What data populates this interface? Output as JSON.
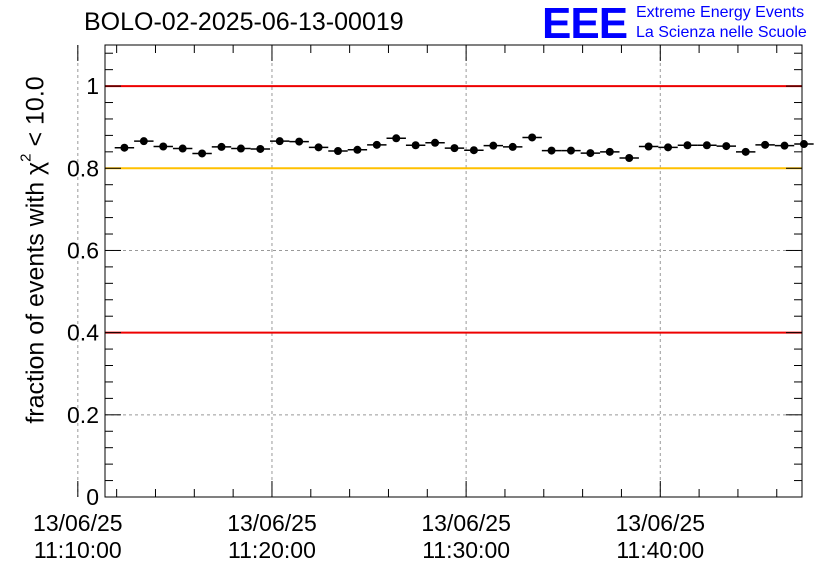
{
  "chart_data": {
    "type": "scatter",
    "title": "BOLO-02-2025-06-13-00019",
    "ylabel": "fraction of events with χ",
    "ylabel_sup": "2",
    "ylabel_suffix": " < 10.0",
    "xlabel": "",
    "ylim": [
      0,
      1.1
    ],
    "y_ticks": [
      "0",
      "0.2",
      "0.4",
      "0.6",
      "0.8",
      "1"
    ],
    "y_tick_values": [
      0,
      0.2,
      0.4,
      0.6,
      0.8,
      1.0
    ],
    "xlim_minutes": [
      11.4,
      47.3
    ],
    "x_ticks": [
      {
        "minute": 10,
        "date": "13/06/25",
        "time": "11:10:00"
      },
      {
        "minute": 20,
        "date": "13/06/25",
        "time": "11:20:00"
      },
      {
        "minute": 30,
        "date": "13/06/25",
        "time": "11:30:00"
      },
      {
        "minute": 40,
        "date": "13/06/25",
        "time": "11:40:00"
      }
    ],
    "grid": true,
    "reference_lines": [
      {
        "y": 1.0,
        "color": "#ee0000"
      },
      {
        "y": 0.8,
        "color": "#ffc000"
      },
      {
        "y": 0.4,
        "color": "#ee0000"
      }
    ],
    "points": [
      {
        "x": 5.4,
        "y": 0.85
      },
      {
        "x": 6.4,
        "y": 0.866
      },
      {
        "x": 7.4,
        "y": 0.853
      },
      {
        "x": 8.4,
        "y": 0.848
      },
      {
        "x": 9.4,
        "y": 0.836
      },
      {
        "x": 10.4,
        "y": 0.852
      },
      {
        "x": 11.4,
        "y": 0.848
      },
      {
        "x": 12.4,
        "y": 0.847
      },
      {
        "x": 13.4,
        "y": 0.866
      },
      {
        "x": 14.4,
        "y": 0.865
      },
      {
        "x": 15.4,
        "y": 0.851
      },
      {
        "x": 16.4,
        "y": 0.842
      },
      {
        "x": 17.4,
        "y": 0.845
      },
      {
        "x": 18.4,
        "y": 0.857
      },
      {
        "x": 19.4,
        "y": 0.873
      },
      {
        "x": 20.4,
        "y": 0.856
      },
      {
        "x": 21.4,
        "y": 0.862
      },
      {
        "x": 22.4,
        "y": 0.849
      },
      {
        "x": 23.4,
        "y": 0.844
      },
      {
        "x": 24.4,
        "y": 0.855
      },
      {
        "x": 25.4,
        "y": 0.852
      },
      {
        "x": 26.4,
        "y": 0.875
      },
      {
        "x": 27.4,
        "y": 0.843
      },
      {
        "x": 28.4,
        "y": 0.843
      },
      {
        "x": 29.4,
        "y": 0.837
      },
      {
        "x": 30.4,
        "y": 0.84
      },
      {
        "x": 31.4,
        "y": 0.825
      },
      {
        "x": 32.4,
        "y": 0.853
      },
      {
        "x": 33.4,
        "y": 0.851
      },
      {
        "x": 34.4,
        "y": 0.856
      },
      {
        "x": 35.4,
        "y": 0.856
      },
      {
        "x": 36.4,
        "y": 0.854
      },
      {
        "x": 37.4,
        "y": 0.84
      },
      {
        "x": 38.4,
        "y": 0.857
      },
      {
        "x": 39.4,
        "y": 0.855
      },
      {
        "x": 40.4,
        "y": 0.859
      }
    ],
    "x_offset_minutes": 7.0,
    "bin_half_width_minutes": 0.5,
    "error_bar": 0.006
  },
  "logo": {
    "mark": "EEE",
    "line1": "Extreme Energy Events",
    "line2": "La Scienza nelle Scuole"
  },
  "colors": {
    "logo": "#0000ff",
    "red_line": "#ee0000",
    "yellow_line": "#ffc000",
    "grid": "#999999"
  }
}
